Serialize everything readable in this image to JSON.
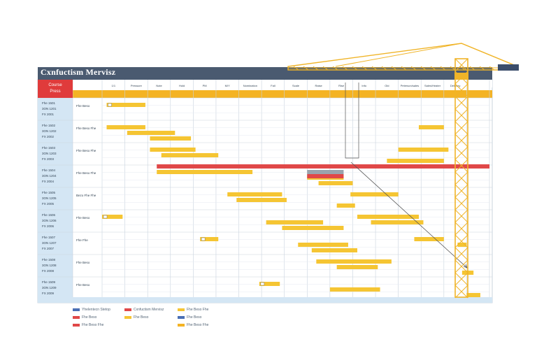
{
  "title": "Cxnfuctism Mervisz",
  "corner_label": [
    "Course",
    "Press"
  ],
  "colors": {
    "header_bar": "#4a5a70",
    "accent_row": "#f4b324",
    "task_bar": "#f5c533",
    "critical_bar": "#e04848",
    "grid": "#c9d3de",
    "sidebar": "#d4e6f4",
    "crane": "#f0b428"
  },
  "columns": [
    "",
    "1/1",
    "Pressure",
    "Note",
    "Hold",
    "PM",
    "M/Y",
    "Nomination",
    "Fall",
    "Scale",
    "Raise",
    "Rise",
    "Info",
    "Old",
    "Peterson/sales",
    "Sales/Heater",
    "Delivery"
  ],
  "chart_data": {
    "type": "gantt",
    "title": "Cxnfuctism Mervisz",
    "rows": [
      {
        "ids": [
          "Fhe 1501",
          "3ON 1201",
          "FX 2001"
        ],
        "task": "Fhe Beso",
        "bars": [
          [
            0.2,
            1.9
          ]
        ]
      },
      {
        "ids": [
          "Fhe 1502",
          "3ON 1202",
          "FX 2002"
        ],
        "task": "Fhe Beso Fhe",
        "bars": [
          [
            0.2,
            1.9
          ],
          [
            1.1,
            3.2
          ],
          [
            2.1,
            3.9
          ],
          [
            13.9,
            15.0
          ]
        ]
      },
      {
        "ids": [
          "Fhe 1503",
          "3ON 1203",
          "FX 2003"
        ],
        "task": "Fhe Beso Fhe",
        "bars": [
          [
            2.1,
            4.1
          ],
          [
            2.6,
            5.1
          ],
          [
            12.5,
            15.0
          ],
          [
            13.0,
            15.2
          ]
        ]
      },
      {
        "ids": [
          "Fhe 1504",
          "3ON 1204",
          "FX 2004"
        ],
        "task": "Fhe Beso Fhe",
        "bars": [
          [
            2.4,
            5.3
          ],
          [
            9.0,
            10.6
          ],
          [
            9.5,
            11.0
          ],
          [
            3.1,
            6.6
          ]
        ],
        "critical": [
          [
            2.4,
            17.0
          ]
        ]
      },
      {
        "ids": [
          "Fhe 1505",
          "3ON 1205",
          "FX 2005"
        ],
        "task": "Bezo Fhe Fhe",
        "bars": [
          [
            5.5,
            7.9
          ],
          [
            5.9,
            8.1
          ],
          [
            10.3,
            11.1
          ],
          [
            10.9,
            13.0
          ]
        ]
      },
      {
        "ids": [
          "Fhe 1506",
          "3ON 1206",
          "FX 2006"
        ],
        "task": "Fhe Beso",
        "bars": [
          [
            0.0,
            0.9
          ],
          [
            7.2,
            9.7
          ],
          [
            7.9,
            10.6
          ],
          [
            11.2,
            13.9
          ],
          [
            11.8,
            14.1
          ]
        ]
      },
      {
        "ids": [
          "Fhe 1507",
          "3ON 1207",
          "FX 2007"
        ],
        "task": "Fhe Fhe",
        "bars": [
          [
            4.3,
            5.1
          ],
          [
            8.6,
            10.8
          ],
          [
            9.2,
            11.2
          ],
          [
            13.7,
            15.0
          ],
          [
            15.6,
            16.0
          ]
        ]
      },
      {
        "ids": [
          "Fhe 1508",
          "3ON 1208",
          "FX 2008"
        ],
        "task": "Fhe Beso",
        "bars": [
          [
            9.4,
            12.7
          ],
          [
            10.3,
            12.1
          ],
          [
            15.8,
            16.3
          ]
        ]
      },
      {
        "ids": [
          "Fhe 1509",
          "3ON 1209",
          "FX 2009"
        ],
        "task": "Fhe Beso",
        "bars": [
          [
            6.9,
            7.8
          ],
          [
            10.0,
            12.2
          ],
          [
            16.0,
            16.6
          ]
        ]
      }
    ],
    "milestones": [
      [
        0,
        0
      ],
      [
        5,
        4
      ],
      [
        6,
        6
      ],
      [
        8,
        7
      ]
    ],
    "legend": [
      {
        "label": "Yhelentecn Stetop",
        "color": "#4a6fb5"
      },
      {
        "label": "Fhe Beso",
        "color": "#e04848"
      },
      {
        "label": "Fhe Beso Fhe",
        "color": "#e04848"
      },
      {
        "label": "Cxnfuctism Mervisz",
        "color": "#e04848"
      },
      {
        "label": "Fhe Beso",
        "color": "#f5c533"
      },
      {
        "label": "Fhe Beso Fhe",
        "color": "#f5c533"
      },
      {
        "label": "Fhe Beso",
        "color": "#4a6fb5"
      },
      {
        "label": "Fhe Beso Fhe",
        "color": "#f4b324"
      }
    ]
  }
}
